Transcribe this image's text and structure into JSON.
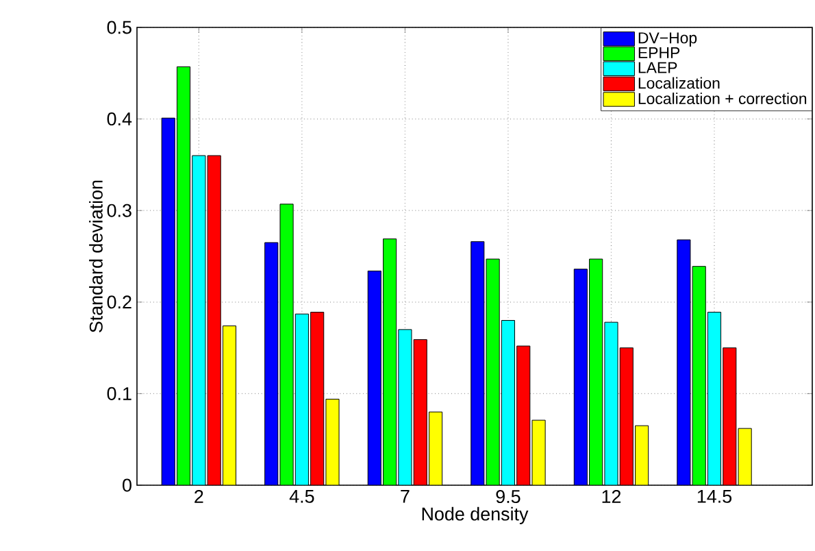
{
  "chart_data": {
    "type": "bar",
    "xlabel": "Node density",
    "ylabel": "Standard deviation",
    "categories": [
      "2",
      "4.5",
      "7",
      "9.5",
      "12",
      "14.5"
    ],
    "series": [
      {
        "name": "DV−Hop",
        "color": "#0000ff",
        "values": [
          0.401,
          0.265,
          0.234,
          0.266,
          0.236,
          0.268
        ]
      },
      {
        "name": "EPHP",
        "color": "#00ff00",
        "values": [
          0.457,
          0.307,
          0.269,
          0.247,
          0.247,
          0.239
        ]
      },
      {
        "name": "LAEP",
        "color": "#00ffff",
        "values": [
          0.36,
          0.187,
          0.17,
          0.18,
          0.178,
          0.189
        ]
      },
      {
        "name": "Localization",
        "color": "#ff0000",
        "values": [
          0.36,
          0.189,
          0.159,
          0.152,
          0.15,
          0.15
        ]
      },
      {
        "name": "Localization + correction",
        "color": "#ffff00",
        "values": [
          0.174,
          0.094,
          0.08,
          0.071,
          0.065,
          0.062
        ]
      }
    ],
    "ylim": [
      0,
      0.5
    ],
    "yticks": [
      0,
      0.1,
      0.2,
      0.3,
      0.4,
      0.5
    ],
    "grid": true,
    "legend": "top right"
  }
}
